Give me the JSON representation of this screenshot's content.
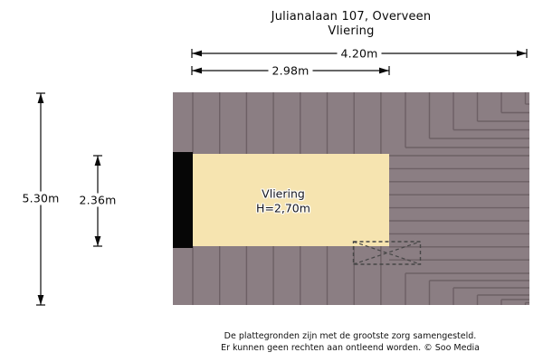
{
  "title": {
    "address": "Julianalaan 107, Overveen",
    "level": "Vliering"
  },
  "room": {
    "name": "Vliering",
    "height_label": "H=2,70m"
  },
  "dimensions": {
    "total_width": "4.20m",
    "room_width": "2.98m",
    "total_depth": "5.30m",
    "room_depth": "2.36m"
  },
  "disclaimer": {
    "line1": "De plattegronden zijn met de grootste zorg samengesteld.",
    "line2": "Er kunnen geen rechten aan ontleend worden. © Soo Media"
  },
  "colors": {
    "page_background": "#FFFFFF",
    "floor_fill": "#8B7E83",
    "plank_line": "#6D6065",
    "room_fill": "#F6E4B0",
    "wall_black": "#060606",
    "hatch_stroke": "#464646",
    "dimension_line": "#0A0A0A"
  }
}
